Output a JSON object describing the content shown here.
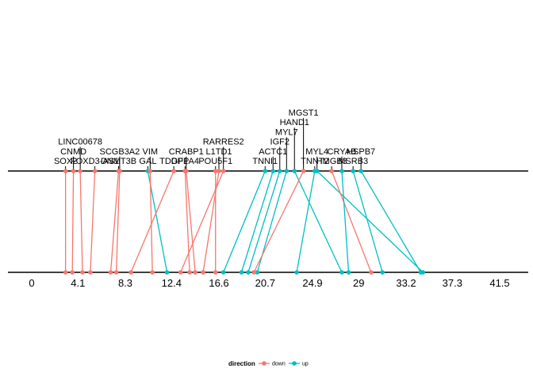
{
  "chart_data": {
    "type": "parallel-rank-lines",
    "xlim": [
      0,
      43.5
    ],
    "ticks": [
      "0",
      "4.1",
      "8.3",
      "12.4",
      "16.6",
      "20.7",
      "24.9",
      "29",
      "33.2",
      "37.3",
      "41.5"
    ],
    "tick_values": [
      0,
      4.1,
      8.3,
      12.4,
      16.6,
      20.7,
      24.9,
      29,
      33.2,
      37.3,
      41.5
    ],
    "legend": {
      "title": "direction",
      "entries": [
        {
          "key": "down",
          "label": "down",
          "color": "#F8766D"
        },
        {
          "key": "up",
          "label": "up",
          "color": "#00BFC4"
        }
      ]
    },
    "genes": [
      {
        "name": "SOX2",
        "top": 3.0,
        "bottom": 3.0,
        "direction": "down"
      },
      {
        "name": "CNMD",
        "top": 3.7,
        "bottom": 3.6,
        "direction": "down"
      },
      {
        "name": "LINC00678",
        "top": 4.3,
        "bottom": 4.5,
        "direction": "down"
      },
      {
        "name": "FOXD3-AS1",
        "top": 5.6,
        "bottom": 5.2,
        "direction": "down"
      },
      {
        "name": "DNMT3B",
        "top": 7.7,
        "bottom": 7.0,
        "direction": "down"
      },
      {
        "name": "SCGB3A2",
        "top": 7.8,
        "bottom": 7.5,
        "direction": "down"
      },
      {
        "name": "GAL",
        "top": 10.3,
        "bottom": 12.0,
        "direction": "up"
      },
      {
        "name": "VIM",
        "top": 10.5,
        "bottom": 10.7,
        "direction": "down"
      },
      {
        "name": "TDGF1",
        "top": 12.6,
        "bottom": 8.8,
        "direction": "down"
      },
      {
        "name": "DPPA4",
        "top": 13.6,
        "bottom": 14.0,
        "direction": "down"
      },
      {
        "name": "CRABP1",
        "top": 13.7,
        "bottom": 14.5,
        "direction": "down"
      },
      {
        "name": "POU5F1",
        "top": 16.3,
        "bottom": 16.3,
        "direction": "down"
      },
      {
        "name": "L1TD1",
        "top": 16.6,
        "bottom": 15.2,
        "direction": "down"
      },
      {
        "name": "RARRES2",
        "top": 17.0,
        "bottom": 13.2,
        "direction": "down"
      },
      {
        "name": "TNNI1",
        "top": 20.7,
        "bottom": 17.0,
        "direction": "up"
      },
      {
        "name": "ACTC1",
        "top": 21.4,
        "bottom": 18.6,
        "direction": "up"
      },
      {
        "name": "IGF2",
        "top": 22.0,
        "bottom": 19.2,
        "direction": "up"
      },
      {
        "name": "MYL7",
        "top": 22.6,
        "bottom": 20.0,
        "direction": "up"
      },
      {
        "name": "HAND1",
        "top": 23.3,
        "bottom": 27.5,
        "direction": "up"
      },
      {
        "name": "MGST1",
        "top": 24.1,
        "bottom": 19.7,
        "direction": "down"
      },
      {
        "name": "TNNT2",
        "top": 25.1,
        "bottom": 23.5,
        "direction": "up"
      },
      {
        "name": "MYL4",
        "top": 25.3,
        "bottom": 34.7,
        "direction": "up"
      },
      {
        "name": "HMGB3",
        "top": 26.6,
        "bottom": 30.1,
        "direction": "down"
      },
      {
        "name": "CRYAB",
        "top": 27.5,
        "bottom": 28.1,
        "direction": "up"
      },
      {
        "name": "MSRB3",
        "top": 28.5,
        "bottom": 31.1,
        "direction": "up"
      },
      {
        "name": "HSPB7",
        "top": 29.2,
        "bottom": 34.5,
        "direction": "up"
      }
    ]
  }
}
